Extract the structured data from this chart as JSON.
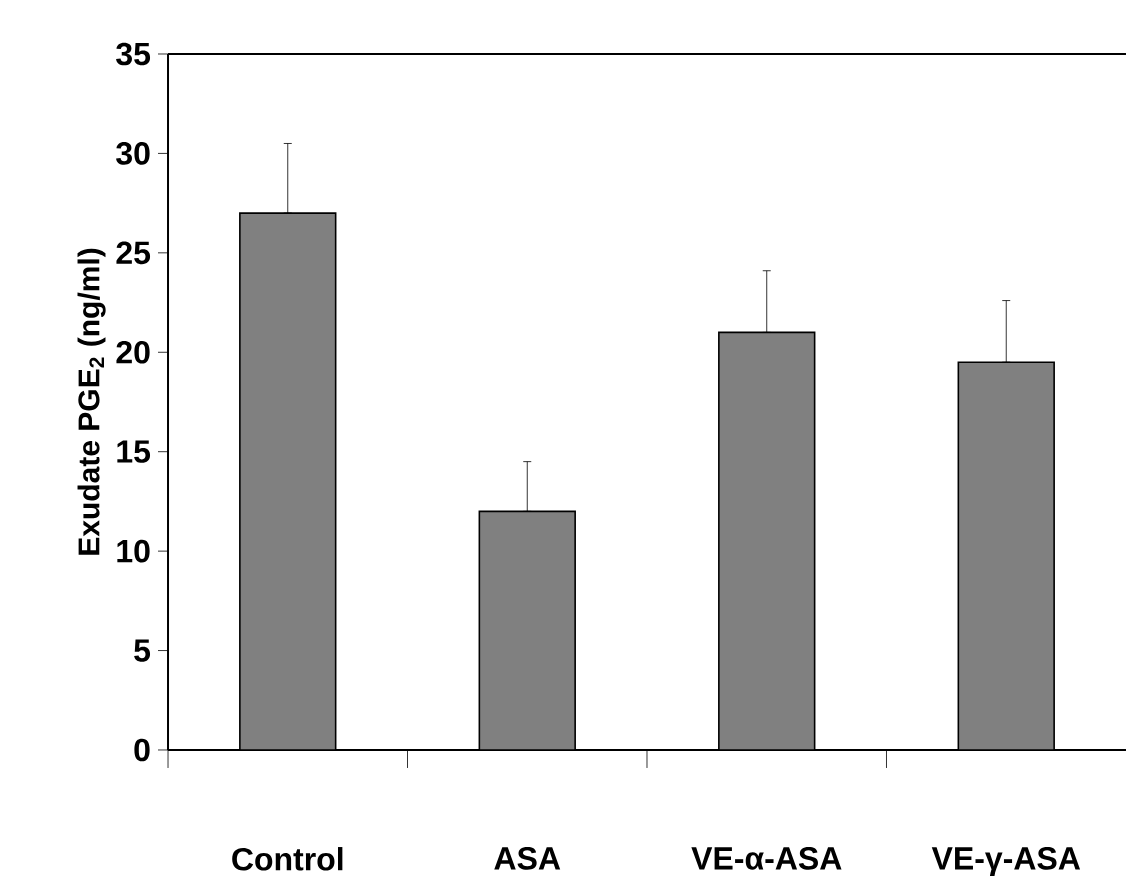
{
  "chart_data": {
    "type": "bar",
    "ylabel": "Exudate PGE$_{2}$ (ng/ml)",
    "categories": [
      "Control",
      "ASA",
      "VE-α-ASA",
      "VE-γ-ASA"
    ],
    "values": [
      27,
      12,
      21,
      19.5
    ],
    "errors": [
      [
        27,
        30.5
      ],
      [
        12,
        14.5
      ],
      [
        21,
        24.1
      ],
      [
        19.5,
        22.6
      ]
    ],
    "color": "#808080",
    "ylim": [
      0,
      35
    ],
    "yticks": [
      0,
      5,
      10,
      15,
      20,
      25,
      30,
      35
    ]
  }
}
